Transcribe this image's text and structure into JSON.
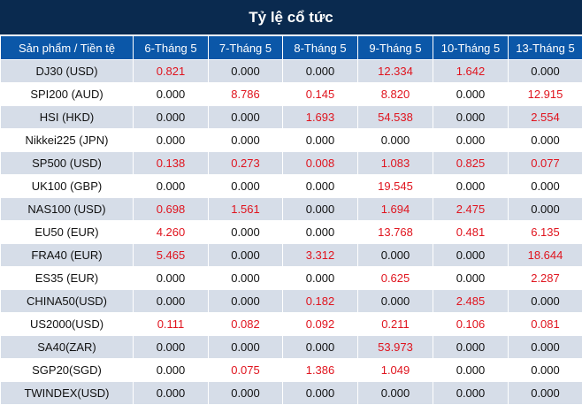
{
  "title": "Tỷ lệ cổ tức",
  "headers": [
    "Sản phẩm / Tiền tệ",
    "6-Tháng 5",
    "7-Tháng 5",
    "8-Tháng 5",
    "9-Tháng 5",
    "10-Tháng 5",
    "13-Tháng 5"
  ],
  "rows": [
    {
      "product": "DJ30 (USD)",
      "values": [
        "0.821",
        "0.000",
        "0.000",
        "12.334",
        "1.642",
        "0.000"
      ]
    },
    {
      "product": "SPI200 (AUD)",
      "values": [
        "0.000",
        "8.786",
        "0.145",
        "8.820",
        "0.000",
        "12.915"
      ]
    },
    {
      "product": "HSI (HKD)",
      "values": [
        "0.000",
        "0.000",
        "1.693",
        "54.538",
        "0.000",
        "2.554"
      ]
    },
    {
      "product": "Nikkei225 (JPN)",
      "values": [
        "0.000",
        "0.000",
        "0.000",
        "0.000",
        "0.000",
        "0.000"
      ]
    },
    {
      "product": "SP500 (USD)",
      "values": [
        "0.138",
        "0.273",
        "0.008",
        "1.083",
        "0.825",
        "0.077"
      ]
    },
    {
      "product": "UK100 (GBP)",
      "values": [
        "0.000",
        "0.000",
        "0.000",
        "19.545",
        "0.000",
        "0.000"
      ]
    },
    {
      "product": "NAS100 (USD)",
      "values": [
        "0.698",
        "1.561",
        "0.000",
        "1.694",
        "2.475",
        "0.000"
      ]
    },
    {
      "product": "EU50 (EUR)",
      "values": [
        "4.260",
        "0.000",
        "0.000",
        "13.768",
        "0.481",
        "6.135"
      ]
    },
    {
      "product": "FRA40 (EUR)",
      "values": [
        "5.465",
        "0.000",
        "3.312",
        "0.000",
        "0.000",
        "18.644"
      ]
    },
    {
      "product": "ES35 (EUR)",
      "values": [
        "0.000",
        "0.000",
        "0.000",
        "0.625",
        "0.000",
        "2.287"
      ]
    },
    {
      "product": "CHINA50(USD)",
      "values": [
        "0.000",
        "0.000",
        "0.182",
        "0.000",
        "2.485",
        "0.000"
      ]
    },
    {
      "product": "US2000(USD)",
      "values": [
        "0.111",
        "0.082",
        "0.092",
        "0.211",
        "0.106",
        "0.081"
      ]
    },
    {
      "product": "SA40(ZAR)",
      "values": [
        "0.000",
        "0.000",
        "0.000",
        "53.973",
        "0.000",
        "0.000"
      ]
    },
    {
      "product": "SGP20(SGD)",
      "values": [
        "0.000",
        "0.075",
        "1.386",
        "1.049",
        "0.000",
        "0.000"
      ]
    },
    {
      "product": "TWINDEX(USD)",
      "values": [
        "0.000",
        "0.000",
        "0.000",
        "0.000",
        "0.000",
        "0.000"
      ]
    }
  ],
  "colors": {
    "title_bg": "#0a2a4f",
    "header_bg": "#0b57a8",
    "row_alt_bg": "#d6dde8",
    "positive_text": "#e0141e",
    "zero_text": "#111111"
  }
}
